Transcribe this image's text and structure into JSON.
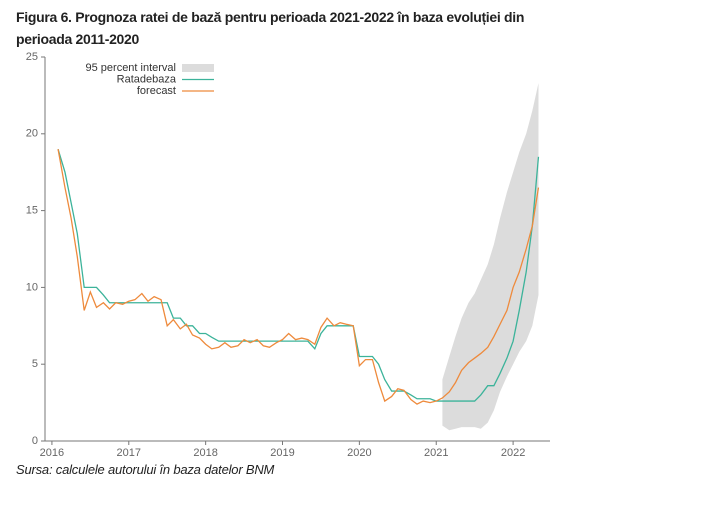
{
  "chart_data": {
    "type": "line",
    "title": "Figura 6. Prognoza ratei de bază pentru perioada 2021-2022 în baza evoluției din perioada 2011-2020",
    "source": "Sursa: calculele autorului în baza datelor BNM",
    "xlim": [
      2015.91,
      2022.48
    ],
    "xticks": [
      2016,
      2017,
      2018,
      2019,
      2020,
      2021,
      2022
    ],
    "ylim": [
      0,
      25
    ],
    "yticks": [
      0,
      5,
      10,
      15,
      20,
      25
    ],
    "x": [
      2016.08,
      2016.17,
      2016.25,
      2016.33,
      2016.42,
      2016.5,
      2016.58,
      2016.67,
      2016.75,
      2016.83,
      2016.92,
      2017.0,
      2017.08,
      2017.17,
      2017.25,
      2017.33,
      2017.42,
      2017.5,
      2017.58,
      2017.67,
      2017.75,
      2017.83,
      2017.92,
      2018.0,
      2018.08,
      2018.17,
      2018.25,
      2018.33,
      2018.42,
      2018.5,
      2018.58,
      2018.67,
      2018.75,
      2018.83,
      2018.92,
      2019.0,
      2019.08,
      2019.17,
      2019.25,
      2019.33,
      2019.42,
      2019.5,
      2019.58,
      2019.67,
      2019.75,
      2019.83,
      2019.92,
      2020.0,
      2020.08,
      2020.17,
      2020.25,
      2020.33,
      2020.42,
      2020.5,
      2020.58,
      2020.67,
      2020.75,
      2020.83,
      2020.92,
      2021.0,
      2021.08,
      2021.17,
      2021.25,
      2021.33,
      2021.42,
      2021.5,
      2021.58,
      2021.67,
      2021.75,
      2021.83,
      2021.92,
      2022.0,
      2022.08,
      2022.17,
      2022.25,
      2022.33
    ],
    "band": {
      "name": "95 percent interval",
      "color": "#dcdcdc",
      "x": [
        2021.08,
        2021.17,
        2021.25,
        2021.33,
        2021.42,
        2021.5,
        2021.58,
        2021.67,
        2021.75,
        2021.83,
        2021.92,
        2022.0,
        2022.08,
        2022.17,
        2022.25,
        2022.33
      ],
      "lower": [
        1.0,
        0.7,
        0.8,
        0.9,
        0.9,
        0.9,
        0.8,
        1.2,
        2.0,
        3.2,
        4.2,
        5.0,
        5.8,
        6.5,
        7.5,
        9.5
      ],
      "upper": [
        4.0,
        5.5,
        6.8,
        8.0,
        9.0,
        9.6,
        10.5,
        11.5,
        12.8,
        14.5,
        16.2,
        17.5,
        18.8,
        20.0,
        21.5,
        23.3
      ]
    },
    "series": [
      {
        "name": "Ratadebaza",
        "color": "#3cb39a",
        "values": [
          19,
          17.5,
          15.5,
          13.5,
          10,
          10,
          10,
          9.5,
          9,
          9,
          9,
          9,
          9,
          9,
          9,
          9,
          9,
          9,
          8,
          8,
          7.5,
          7.5,
          7,
          7,
          6.75,
          6.5,
          6.5,
          6.5,
          6.5,
          6.5,
          6.5,
          6.5,
          6.5,
          6.5,
          6.5,
          6.5,
          6.5,
          6.5,
          6.5,
          6.5,
          6.0,
          7.0,
          7.5,
          7.5,
          7.5,
          7.5,
          7.5,
          5.5,
          5.5,
          5.5,
          5.0,
          4.0,
          3.25,
          3.25,
          3.25,
          3.0,
          2.75,
          2.75,
          2.75,
          2.6,
          2.6,
          2.6,
          2.6,
          2.6,
          2.6,
          2.6,
          3.0,
          3.6,
          3.6,
          4.4,
          5.4,
          6.5,
          8.5,
          11,
          14,
          18.5
        ]
      },
      {
        "name": "forecast",
        "color": "#ee8a3c",
        "values": [
          19,
          16.5,
          14.5,
          12,
          8.5,
          9.7,
          8.7,
          9,
          8.6,
          9,
          8.9,
          9.1,
          9.2,
          9.6,
          9.1,
          9.4,
          9.2,
          7.5,
          7.9,
          7.3,
          7.6,
          6.9,
          6.7,
          6.3,
          6.0,
          6.1,
          6.4,
          6.1,
          6.2,
          6.6,
          6.4,
          6.6,
          6.2,
          6.1,
          6.4,
          6.6,
          7.0,
          6.6,
          6.7,
          6.6,
          6.3,
          7.4,
          8.0,
          7.5,
          7.7,
          7.6,
          7.5,
          4.9,
          5.3,
          5.3,
          3.8,
          2.6,
          2.9,
          3.4,
          3.3,
          2.7,
          2.4,
          2.6,
          2.5,
          2.6,
          2.8,
          3.2,
          3.8,
          4.6,
          5.1,
          5.4,
          5.7,
          6.1,
          6.8,
          7.6,
          8.5,
          10,
          11,
          12.5,
          14,
          16.5
        ]
      }
    ]
  }
}
